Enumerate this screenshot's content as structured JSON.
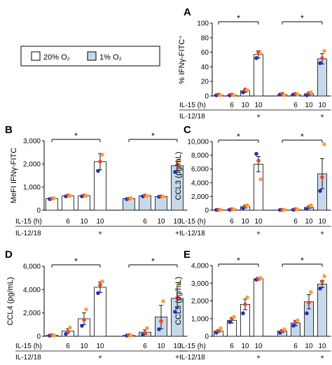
{
  "colors": {
    "o20_fill": "#ffffff",
    "o1_fill": "#c6d9ea",
    "bar_stroke": "#222222",
    "dot_blue": "#1f2fbf",
    "dot_red": "#e8462f",
    "dot_orange": "#f5a23c"
  },
  "legend": {
    "items": [
      {
        "label": "20% O₂",
        "color": "#ffffff"
      },
      {
        "label": "1% O₂",
        "color": "#c6d9ea"
      }
    ]
  },
  "condition_rows": {
    "row1_label": "IL-15 (h)",
    "row2_label": "IL-12/18",
    "il15": [
      "",
      "6",
      "10",
      "10",
      "",
      "6",
      "10",
      "10"
    ],
    "il1218": [
      "",
      "",
      "",
      "+",
      "",
      "",
      "",
      "+"
    ]
  },
  "chart_data": [
    {
      "panel": "A",
      "type": "bar",
      "ylabel": "% IFNγ-FITC⁺",
      "ylim": [
        0,
        100
      ],
      "ticks": [
        "0",
        "20",
        "40",
        "60",
        "80",
        "100"
      ],
      "oxygen": [
        "20% O₂",
        "20% O₂",
        "20% O₂",
        "20% O₂",
        "1% O₂",
        "1% O₂",
        "1% O₂",
        "1% O₂"
      ],
      "values": [
        1,
        1,
        7,
        57,
        2,
        2,
        3,
        51
      ],
      "errors": [
        0.5,
        0.5,
        2,
        5,
        0.5,
        0.5,
        1.5,
        7
      ],
      "points": [
        [
          1,
          2,
          1
        ],
        [
          1,
          2,
          1
        ],
        [
          5,
          9,
          8
        ],
        [
          52,
          60,
          58
        ],
        [
          2,
          3,
          1
        ],
        [
          2,
          3,
          2
        ],
        [
          1,
          4,
          5
        ],
        [
          45,
          52,
          62
        ]
      ],
      "significance": [
        {
          "from": 0,
          "to": 3,
          "label": "*"
        },
        {
          "from": 4,
          "to": 7,
          "label": "*"
        }
      ]
    },
    {
      "panel": "B",
      "type": "bar",
      "ylabel": "MeFI IFNγ-FITC",
      "ylim": [
        0,
        3000
      ],
      "ticks": [
        "0",
        "1,000",
        "2,000",
        "3,000"
      ],
      "oxygen": [
        "20% O₂",
        "20% O₂",
        "20% O₂",
        "20% O₂",
        "1% O₂",
        "1% O₂",
        "1% O₂",
        "1% O₂"
      ],
      "values": [
        500,
        620,
        620,
        2100,
        500,
        620,
        590,
        1920
      ],
      "errors": [
        20,
        30,
        30,
        350,
        20,
        30,
        30,
        200
      ],
      "points": [
        [
          480,
          500,
          520
        ],
        [
          600,
          640,
          620
        ],
        [
          600,
          640,
          620
        ],
        [
          1700,
          2100,
          2400
        ],
        [
          480,
          500,
          520
        ],
        [
          600,
          640,
          620
        ],
        [
          580,
          600,
          590
        ],
        [
          1650,
          1950,
          2150
        ]
      ],
      "significance": [
        {
          "from": 0,
          "to": 3,
          "label": "*"
        },
        {
          "from": 4,
          "to": 7,
          "label": "*"
        }
      ]
    },
    {
      "panel": "C",
      "type": "bar",
      "ylabel": "CCL3 (pg/mL)",
      "ylim": [
        0,
        10000
      ],
      "ticks": [
        "0",
        "2,000",
        "4,000",
        "6,000",
        "8,000",
        "10,000"
      ],
      "oxygen": [
        "20% O₂",
        "20% O₂",
        "20% O₂",
        "20% O₂",
        "1% O₂",
        "1% O₂",
        "1% O₂",
        "1% O₂"
      ],
      "values": [
        50,
        100,
        500,
        6700,
        50,
        100,
        400,
        5300
      ],
      "errors": [
        20,
        30,
        200,
        1100,
        20,
        30,
        150,
        2200
      ],
      "points": [
        [
          30,
          60,
          40
        ],
        [
          60,
          150,
          100
        ],
        [
          300,
          600,
          700
        ],
        [
          8200,
          7200,
          4500
        ],
        [
          30,
          60,
          40
        ],
        [
          60,
          150,
          100
        ],
        [
          200,
          500,
          700
        ],
        [
          2800,
          4800,
          9600
        ]
      ],
      "significance": [
        {
          "from": 0,
          "to": 3,
          "label": "*"
        },
        {
          "from": 4,
          "to": 7,
          "label": "*"
        }
      ]
    },
    {
      "panel": "D",
      "type": "bar",
      "ylabel": "CCL4 (pg/mL)",
      "ylim": [
        0,
        6000
      ],
      "ticks": [
        "0",
        "2,000",
        "4,000",
        "6,000"
      ],
      "oxygen": [
        "20% O₂",
        "20% O₂",
        "20% O₂",
        "20% O₂",
        "1% O₂",
        "1% O₂",
        "1% O₂",
        "1% O₂"
      ],
      "values": [
        80,
        450,
        1500,
        4200,
        80,
        350,
        1650,
        3250
      ],
      "errors": [
        20,
        200,
        500,
        450,
        20,
        200,
        1000,
        800
      ],
      "points": [
        [
          60,
          100,
          80
        ],
        [
          200,
          400,
          750
        ],
        [
          900,
          1400,
          2300
        ],
        [
          3700,
          4400,
          4700
        ],
        [
          60,
          100,
          80
        ],
        [
          150,
          300,
          700
        ],
        [
          600,
          1300,
          3000
        ],
        [
          2100,
          3300,
          4500
        ]
      ],
      "significance": [
        {
          "from": 0,
          "to": 3,
          "label": "*"
        },
        {
          "from": 4,
          "to": 7,
          "label": "*"
        }
      ]
    },
    {
      "panel": "E",
      "type": "bar",
      "ylabel": "CCL5 (pg/mL)",
      "ylim": [
        0,
        4000
      ],
      "ticks": [
        "0",
        "1,000",
        "2,000",
        "3,000",
        "4,000"
      ],
      "oxygen": [
        "20% O₂",
        "20% O₂",
        "20% O₂",
        "20% O₂",
        "1% O₂",
        "1% O₂",
        "1% O₂",
        "1% O₂"
      ],
      "values": [
        300,
        900,
        1800,
        3250,
        300,
        750,
        1950,
        2950
      ],
      "errors": [
        80,
        150,
        300,
        80,
        80,
        150,
        400,
        200
      ],
      "points": [
        [
          200,
          300,
          450
        ],
        [
          800,
          1000,
          1100
        ],
        [
          1300,
          1800,
          2200
        ],
        [
          3200,
          3250,
          3300
        ],
        [
          200,
          300,
          400
        ],
        [
          600,
          800,
          900
        ],
        [
          1300,
          1900,
          2500
        ],
        [
          2700,
          3100,
          3400
        ]
      ],
      "significance": [
        {
          "from": 0,
          "to": 3,
          "label": "*"
        },
        {
          "from": 4,
          "to": 7,
          "label": "*"
        }
      ]
    }
  ]
}
